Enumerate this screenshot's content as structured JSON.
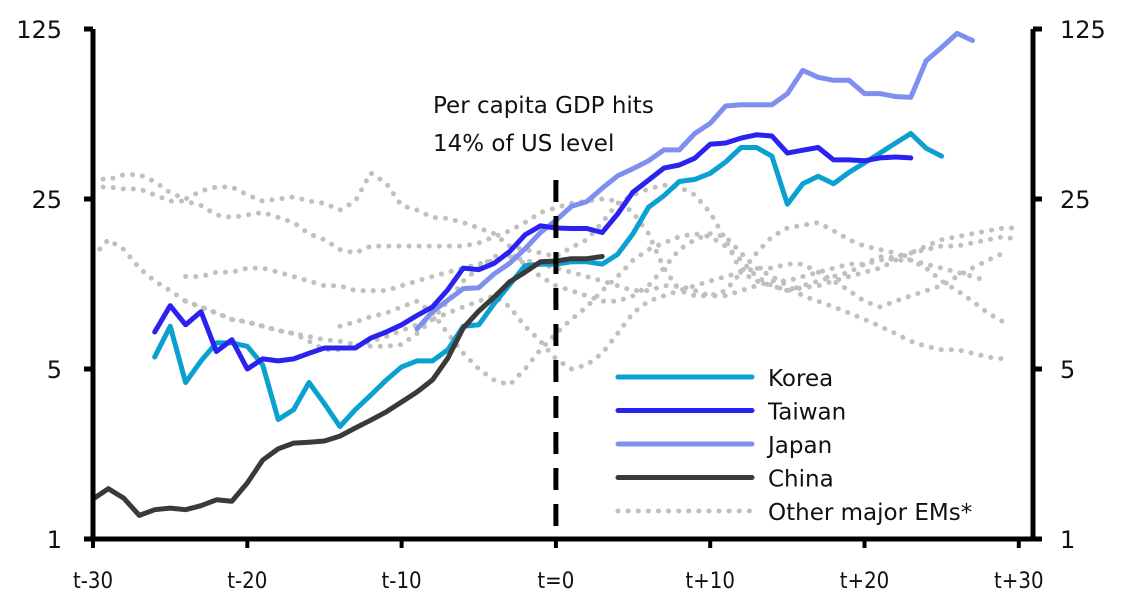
{
  "chart_data": {
    "type": "line",
    "title": "",
    "xlabel": "",
    "ylabel": "",
    "y_scale": "log",
    "ylim": [
      1,
      125
    ],
    "xlim": [
      -30,
      31
    ],
    "y_ticks": [
      1,
      5,
      25,
      125
    ],
    "y_tick_labels": [
      "1",
      "5",
      "25",
      "125"
    ],
    "x_ticks": [
      -30,
      -20,
      -10,
      0,
      10,
      20,
      30
    ],
    "x_tick_labels": [
      "t-30",
      "t-20",
      "t-10",
      "t=0",
      "t+10",
      "t+20",
      "t+30"
    ],
    "grid": false,
    "legend_position": "bottom-right",
    "annotation": {
      "lines": [
        "Per capita GDP hits",
        "14% of US level"
      ],
      "at_x": 0,
      "marker": "dashed vertical line at t=0"
    },
    "series": [
      {
        "name": "Korea",
        "color": "#0aa0cf",
        "style": "solid",
        "x_start": -26,
        "values": [
          5.6,
          7.5,
          4.4,
          5.4,
          6.4,
          6.4,
          6.2,
          5.2,
          3.1,
          3.4,
          4.4,
          3.6,
          2.9,
          3.4,
          3.9,
          4.5,
          5.1,
          5.4,
          5.4,
          6.0,
          7.5,
          7.6,
          9.3,
          11.1,
          13.3,
          13.5,
          13.5,
          13.8,
          13.8,
          13.5,
          14.8,
          18.0,
          23.1,
          25.8,
          29.5,
          30.1,
          31.9,
          35.5,
          40.7,
          40.7,
          37.5,
          23.8,
          28.9,
          31.0,
          28.9,
          32.2,
          35.2,
          38.6,
          42.4,
          46.5,
          40.4,
          37.5
        ]
      },
      {
        "name": "Taiwan",
        "color": "#2b22f0",
        "style": "solid",
        "x_start": -26,
        "values": [
          7.1,
          9.1,
          7.6,
          8.6,
          5.9,
          6.6,
          5.0,
          5.5,
          5.4,
          5.5,
          5.8,
          6.1,
          6.1,
          6.1,
          6.7,
          7.1,
          7.6,
          8.3,
          9.0,
          10.6,
          13.0,
          12.8,
          13.6,
          15.2,
          17.8,
          19.4,
          19.0,
          18.9,
          18.9,
          18.2,
          21.7,
          26.7,
          29.9,
          33.5,
          34.5,
          36.8,
          42.0,
          42.5,
          44.5,
          45.9,
          45.4,
          38.6,
          39.7,
          40.7,
          36.2,
          36.2,
          35.9,
          36.9,
          37.2,
          36.9
        ]
      },
      {
        "name": "Japan",
        "color": "#7f8ff0",
        "style": "solid",
        "x_start": -9,
        "values": [
          7.3,
          8.6,
          9.6,
          10.7,
          10.8,
          12.3,
          13.6,
          15.6,
          18.2,
          20.4,
          23.3,
          24.4,
          27.7,
          31.1,
          33.3,
          35.9,
          39.8,
          39.8,
          46.5,
          51.2,
          60.3,
          61.0,
          61.0,
          61.0,
          67.8,
          84.5,
          79.1,
          76.9,
          76.9,
          67.8,
          67.8,
          66.0,
          65.4,
          92.6,
          104.9,
          119.9,
          112.1
        ]
      },
      {
        "name": "China",
        "color": "#3a3a3a",
        "style": "solid",
        "x_start": -30,
        "values": [
          1.46,
          1.61,
          1.47,
          1.25,
          1.32,
          1.34,
          1.32,
          1.37,
          1.45,
          1.43,
          1.7,
          2.11,
          2.35,
          2.48,
          2.5,
          2.53,
          2.65,
          2.86,
          3.08,
          3.33,
          3.66,
          4.02,
          4.51,
          5.55,
          7.38,
          8.66,
          9.88,
          11.4,
          12.5,
          13.8,
          13.9,
          14.2,
          14.2,
          14.5
        ]
      },
      {
        "name": "Other major EMs*",
        "color": "#c0c0c0",
        "style": "dotted",
        "sub_series": [
          {
            "x_start": -30,
            "values": [
              30.5,
              30.0,
              31.5,
              31.5,
              29.5,
              26.5,
              25.0,
              27.0,
              28.0,
              28.0,
              26.0,
              24.5,
              25.0,
              25.5,
              24.5,
              24.0,
              22.5,
              24.5,
              32.0,
              29.0,
              23.5,
              22.5,
              21.0,
              20.8,
              20.0,
              19.0,
              18.0,
              16.0,
              15.5,
              15.0,
              14.5,
              15.8,
              17.0,
              20.0,
              24.0,
              26.0,
              27.5,
              28.5,
              28.0,
              26.0,
              22.0,
              17.0,
              12.5,
              11.5,
              11.0,
              10.5,
              11.0,
              11.5,
              12.0,
              12.5,
              13.5,
              14.5,
              14.0,
              14.0,
              13.5,
              13.0,
              12.5,
              12.0,
              11.5
            ]
          },
          {
            "x_start": -30,
            "values": [
              28.0,
              28.0,
              27.5,
              27.5,
              26.0,
              24.5,
              24.5,
              23.5,
              21.5,
              21.0,
              21.5,
              22.0,
              21.0,
              20.0,
              18.0,
              17.0,
              15.5,
              15.0,
              16.0,
              16.0,
              16.0,
              16.0,
              16.0,
              16.0,
              16.0,
              16.5,
              17.5,
              18.5,
              20.0,
              22.0,
              23.0,
              24.0,
              24.5,
              25.0,
              24.5,
              22.0,
              18.0,
              13.0,
              10.5,
              10.0,
              10.0,
              10.5,
              12.5,
              15.0,
              17.5,
              19.0,
              19.5,
              20.0,
              18.5,
              17.0,
              16.0,
              15.5,
              15.0,
              14.0,
              13.0,
              11.5,
              10.5,
              9.5,
              8.5,
              7.8
            ]
          },
          {
            "x_start": -30,
            "values": [
              14.5,
              17.0,
              15.5,
              13.0,
              11.5,
              10.5,
              9.5,
              9.0,
              8.5,
              8.0,
              7.8,
              7.5,
              7.2,
              7.0,
              6.8,
              6.6,
              6.5,
              6.3,
              6.2,
              6.2,
              6.3,
              7.0,
              8.0,
              9.5,
              11.5,
              13.0,
              14.5,
              15.0,
              13.5,
              12.0,
              11.0,
              10.5,
              10.0,
              9.5,
              9.5,
              10.0,
              11.0,
              13.0,
              15.5,
              17.0,
              18.0,
              17.5,
              15.0,
              13.0,
              12.0,
              11.0,
              10.0,
              9.5,
              9.0,
              8.5,
              8.0,
              7.5,
              7.0,
              6.5,
              6.2,
              6.0,
              6.0,
              5.8,
              5.6,
              5.5
            ]
          },
          {
            "x_start": -24,
            "values": [
              12.0,
              12.0,
              12.5,
              12.5,
              13.0,
              13.0,
              12.5,
              12.0,
              11.5,
              11.0,
              11.0,
              10.5,
              10.5,
              10.5,
              11.0,
              11.5,
              12.0,
              12.5,
              13.0,
              13.5,
              14.0,
              14.5,
              14.0,
              13.5,
              13.0,
              12.5,
              12.0,
              11.5,
              11.0,
              10.5,
              10.5,
              11.0,
              11.0,
              10.5,
              10.0,
              10.0,
              10.5,
              11.0,
              11.5,
              11.5,
              12.0,
              12.5,
              13.0,
              13.5,
              13.5,
              14.0,
              14.5,
              15.0,
              15.5,
              16.0,
              16.0,
              16.5,
              17.0,
              17.5,
              17.0
            ]
          },
          {
            "x_start": -24,
            "values": [
              9.5,
              9.0,
              8.5,
              8.0,
              7.8,
              7.5,
              7.2,
              7.0,
              6.5,
              6.0,
              6.0,
              6.2,
              6.5,
              6.8,
              7.2,
              7.6,
              8.0,
              8.5,
              9.0,
              9.5,
              10.0,
              9.0,
              7.5,
              6.5,
              5.5,
              5.0,
              5.2,
              5.8,
              7.0,
              8.5,
              9.5,
              10.0,
              10.5,
              11.0,
              11.5,
              12.0,
              12.5,
              13.0,
              13.0,
              13.5,
              13.5,
              12.5,
              11.5,
              10.5,
              9.5,
              9.0,
              9.5,
              10.0,
              10.5,
              11.0,
              12.0,
              13.0,
              14.0,
              15.0
            ]
          },
          {
            "x_start": -14,
            "values": [
              7.5,
              7.8,
              8.2,
              8.5,
              9.0,
              9.5,
              8.5,
              7.0,
              5.8,
              5.0,
              4.5,
              4.3,
              5.0,
              6.0,
              7.0,
              8.0,
              9.0,
              10.5,
              12.0,
              14.0,
              15.5,
              16.5,
              17.5,
              18.0,
              17.5,
              16.0,
              14.0,
              12.0,
              11.0,
              10.5,
              10.8,
              11.0,
              11.5,
              12.0,
              12.5,
              13.0,
              14.0,
              15.0,
              16.0,
              17.0,
              17.5,
              18.0,
              18.5,
              19.0,
              19.0
            ]
          }
        ]
      }
    ]
  }
}
